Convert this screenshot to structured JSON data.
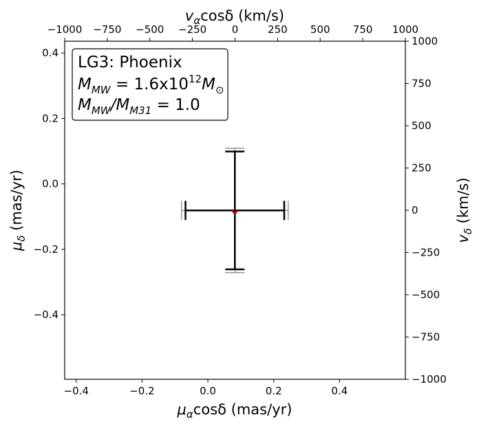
{
  "chart_data": {
    "type": "errorbar",
    "annotation": {
      "title": "LG3: Phoenix",
      "mass": [
        "M",
        "MW",
        " = 1.6x10",
        "12",
        "M",
        "⊙"
      ],
      "ratio": [
        "M",
        "MW",
        "/M",
        "M31",
        " = 1.0"
      ]
    },
    "xlabel": [
      "μ",
      "α",
      "cosδ (mas/yr)"
    ],
    "ylabel": [
      "μ",
      "δ",
      " (mas/yr)"
    ],
    "x2label": [
      "v",
      "α",
      "cosδ (km/s)"
    ],
    "y2label": [
      "v",
      "δ",
      " (km/s)"
    ],
    "xlim": [
      -0.435,
      0.6
    ],
    "ylim": [
      -0.597,
      0.436
    ],
    "x2lim": [
      -1000,
      1000
    ],
    "y2lim": [
      -1000,
      1000
    ],
    "xticks": [
      {
        "value": -0.4,
        "label": "−0.4"
      },
      {
        "value": -0.2,
        "label": "−0.2"
      },
      {
        "value": 0,
        "label": "0.0"
      },
      0.2,
      0.4
    ],
    "yticks": [
      {
        "value": -0.4,
        "label": "−0.4"
      },
      {
        "value": -0.2,
        "label": "−0.2"
      },
      {
        "value": 0,
        "label": "0.0"
      },
      0.2,
      0.4
    ],
    "x2ticks": [
      {
        "value": -1000,
        "label": "−1000"
      },
      {
        "value": -750,
        "label": "−750"
      },
      {
        "value": -500,
        "label": "−500"
      },
      {
        "value": -250,
        "label": "−250"
      },
      0,
      250,
      500,
      750,
      1000
    ],
    "y2ticks": [
      {
        "value": -1000,
        "label": "−1000"
      },
      {
        "value": -750,
        "label": "−750"
      },
      {
        "value": -500,
        "label": "−500"
      },
      {
        "value": -250,
        "label": "−250"
      },
      0,
      250,
      500,
      750,
      1000
    ],
    "series": [
      {
        "color": "#808080",
        "x": [
          0.082
        ],
        "y": [
          -0.081
        ],
        "xerr": [
          0.162
        ],
        "yerr": [
          0.19
        ],
        "width": 1.2
      },
      {
        "color": "#000000",
        "x": [
          0.082
        ],
        "y": [
          -0.081
        ],
        "xerr": [
          0.15
        ],
        "yerr": [
          0.18
        ],
        "width": 2.5
      },
      {
        "color": "#ff0000",
        "x": [
          0.082
        ],
        "y": [
          -0.088
        ]
      }
    ]
  }
}
